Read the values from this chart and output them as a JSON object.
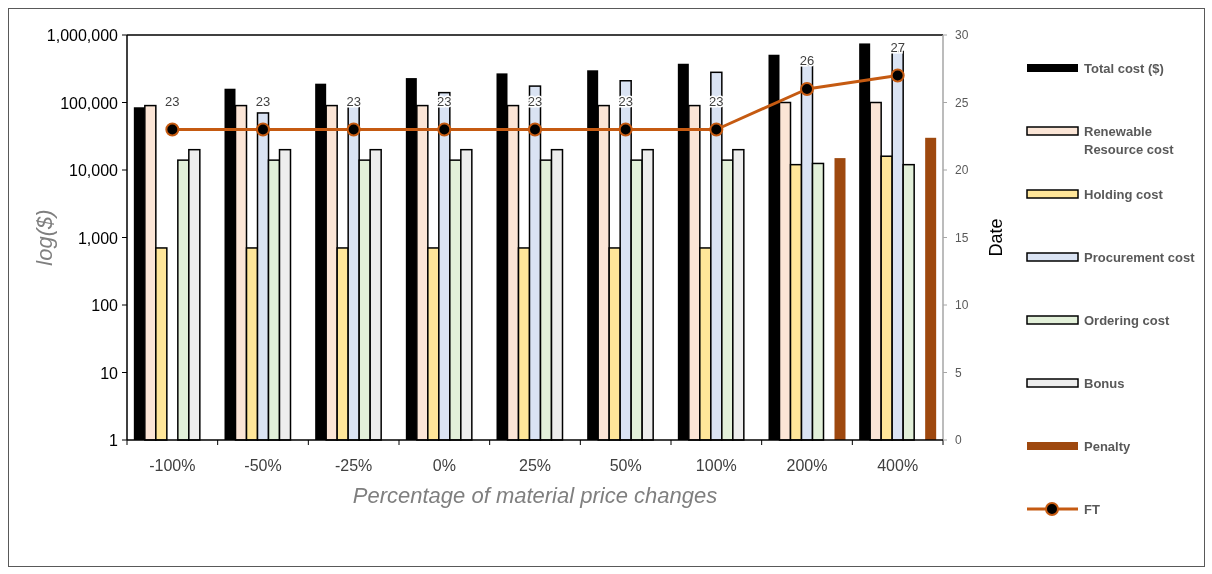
{
  "chart_data": {
    "type": "bar",
    "xlabel": "Percentage of material price changes",
    "ylabel": "log($)",
    "y2label": "Date",
    "categories": [
      "-100%",
      "-50%",
      "-25%",
      "0%",
      "25%",
      "50%",
      "100%",
      "200%",
      "400%"
    ],
    "log": "y",
    "ylim": [
      1,
      1000000
    ],
    "yticks": [
      1,
      10,
      100,
      {
        "value": 1000,
        "label": "1,000"
      },
      {
        "value": 10000,
        "label": "10,000"
      },
      {
        "value": 100000,
        "label": "100,000"
      },
      {
        "value": 1000000,
        "label": "1,000,000"
      }
    ],
    "y2lim": [
      0,
      30
    ],
    "y2ticks": [
      0,
      5,
      10,
      15,
      20,
      25,
      30
    ],
    "grid": false,
    "legend": "right",
    "marker": "circle",
    "line_style": "solid",
    "series": [
      {
        "name": "Total cost ($)",
        "color": "#000000",
        "values": [
          85000,
          160000,
          190000,
          230000,
          270000,
          300000,
          375000,
          510000,
          750000
        ]
      },
      {
        "name": "Renewable Resource cost",
        "color": "#fbe5d6",
        "values": [
          90000,
          90000,
          90000,
          90000,
          90000,
          90000,
          90000,
          100000,
          100000
        ]
      },
      {
        "name": "Holding cost",
        "color": "#ffe699",
        "values": [
          700,
          700,
          700,
          700,
          700,
          700,
          700,
          12000,
          16000
        ]
      },
      {
        "name": "Procurement cost",
        "color": "#dae3f3",
        "values": [
          null,
          70000,
          90000,
          140000,
          175000,
          210000,
          280000,
          360000,
          570000
        ]
      },
      {
        "name": "Ordering cost",
        "color": "#e2f0d9",
        "values": [
          14000,
          14000,
          14000,
          14000,
          14000,
          14000,
          14000,
          12500,
          12000
        ]
      },
      {
        "name": "Bonus",
        "color": "#ededed",
        "values": [
          20000,
          20000,
          20000,
          20000,
          20000,
          20000,
          20000,
          null,
          null
        ]
      },
      {
        "name": "Penalty",
        "color": "#9e480e",
        "values": [
          null,
          null,
          null,
          null,
          null,
          null,
          null,
          15000,
          30000
        ]
      },
      {
        "name": "FT",
        "type": "line",
        "axis": "y2",
        "color": "#c55a11",
        "values": [
          23,
          23,
          23,
          23,
          23,
          23,
          23,
          26,
          27
        ],
        "value_labels": [
          "23",
          "23",
          "23",
          "23",
          "23",
          "23",
          "23",
          "26",
          "27"
        ]
      }
    ]
  }
}
